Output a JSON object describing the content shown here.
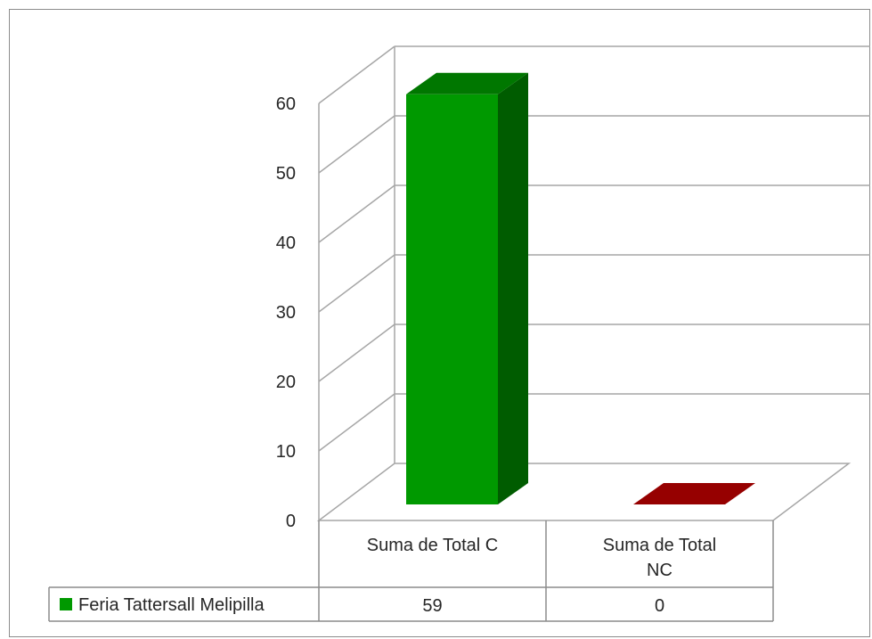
{
  "chart_data": {
    "type": "bar",
    "style": "3d-column-with-data-table",
    "categories": [
      "Suma de Total C",
      "Suma de Total NC"
    ],
    "category_lines": [
      [
        "Suma de Total C"
      ],
      [
        "Suma de Total",
        "NC"
      ]
    ],
    "series": [
      {
        "name": "Feria Tattersall Melipilla",
        "values": [
          59,
          0
        ],
        "bar_colors": [
          "#009900",
          "#c00000"
        ]
      }
    ],
    "yticks": [
      "0",
      "10",
      "20",
      "30",
      "40",
      "50",
      "60"
    ],
    "ylim": [
      0,
      60
    ],
    "grid": true,
    "legend": "data-table"
  }
}
